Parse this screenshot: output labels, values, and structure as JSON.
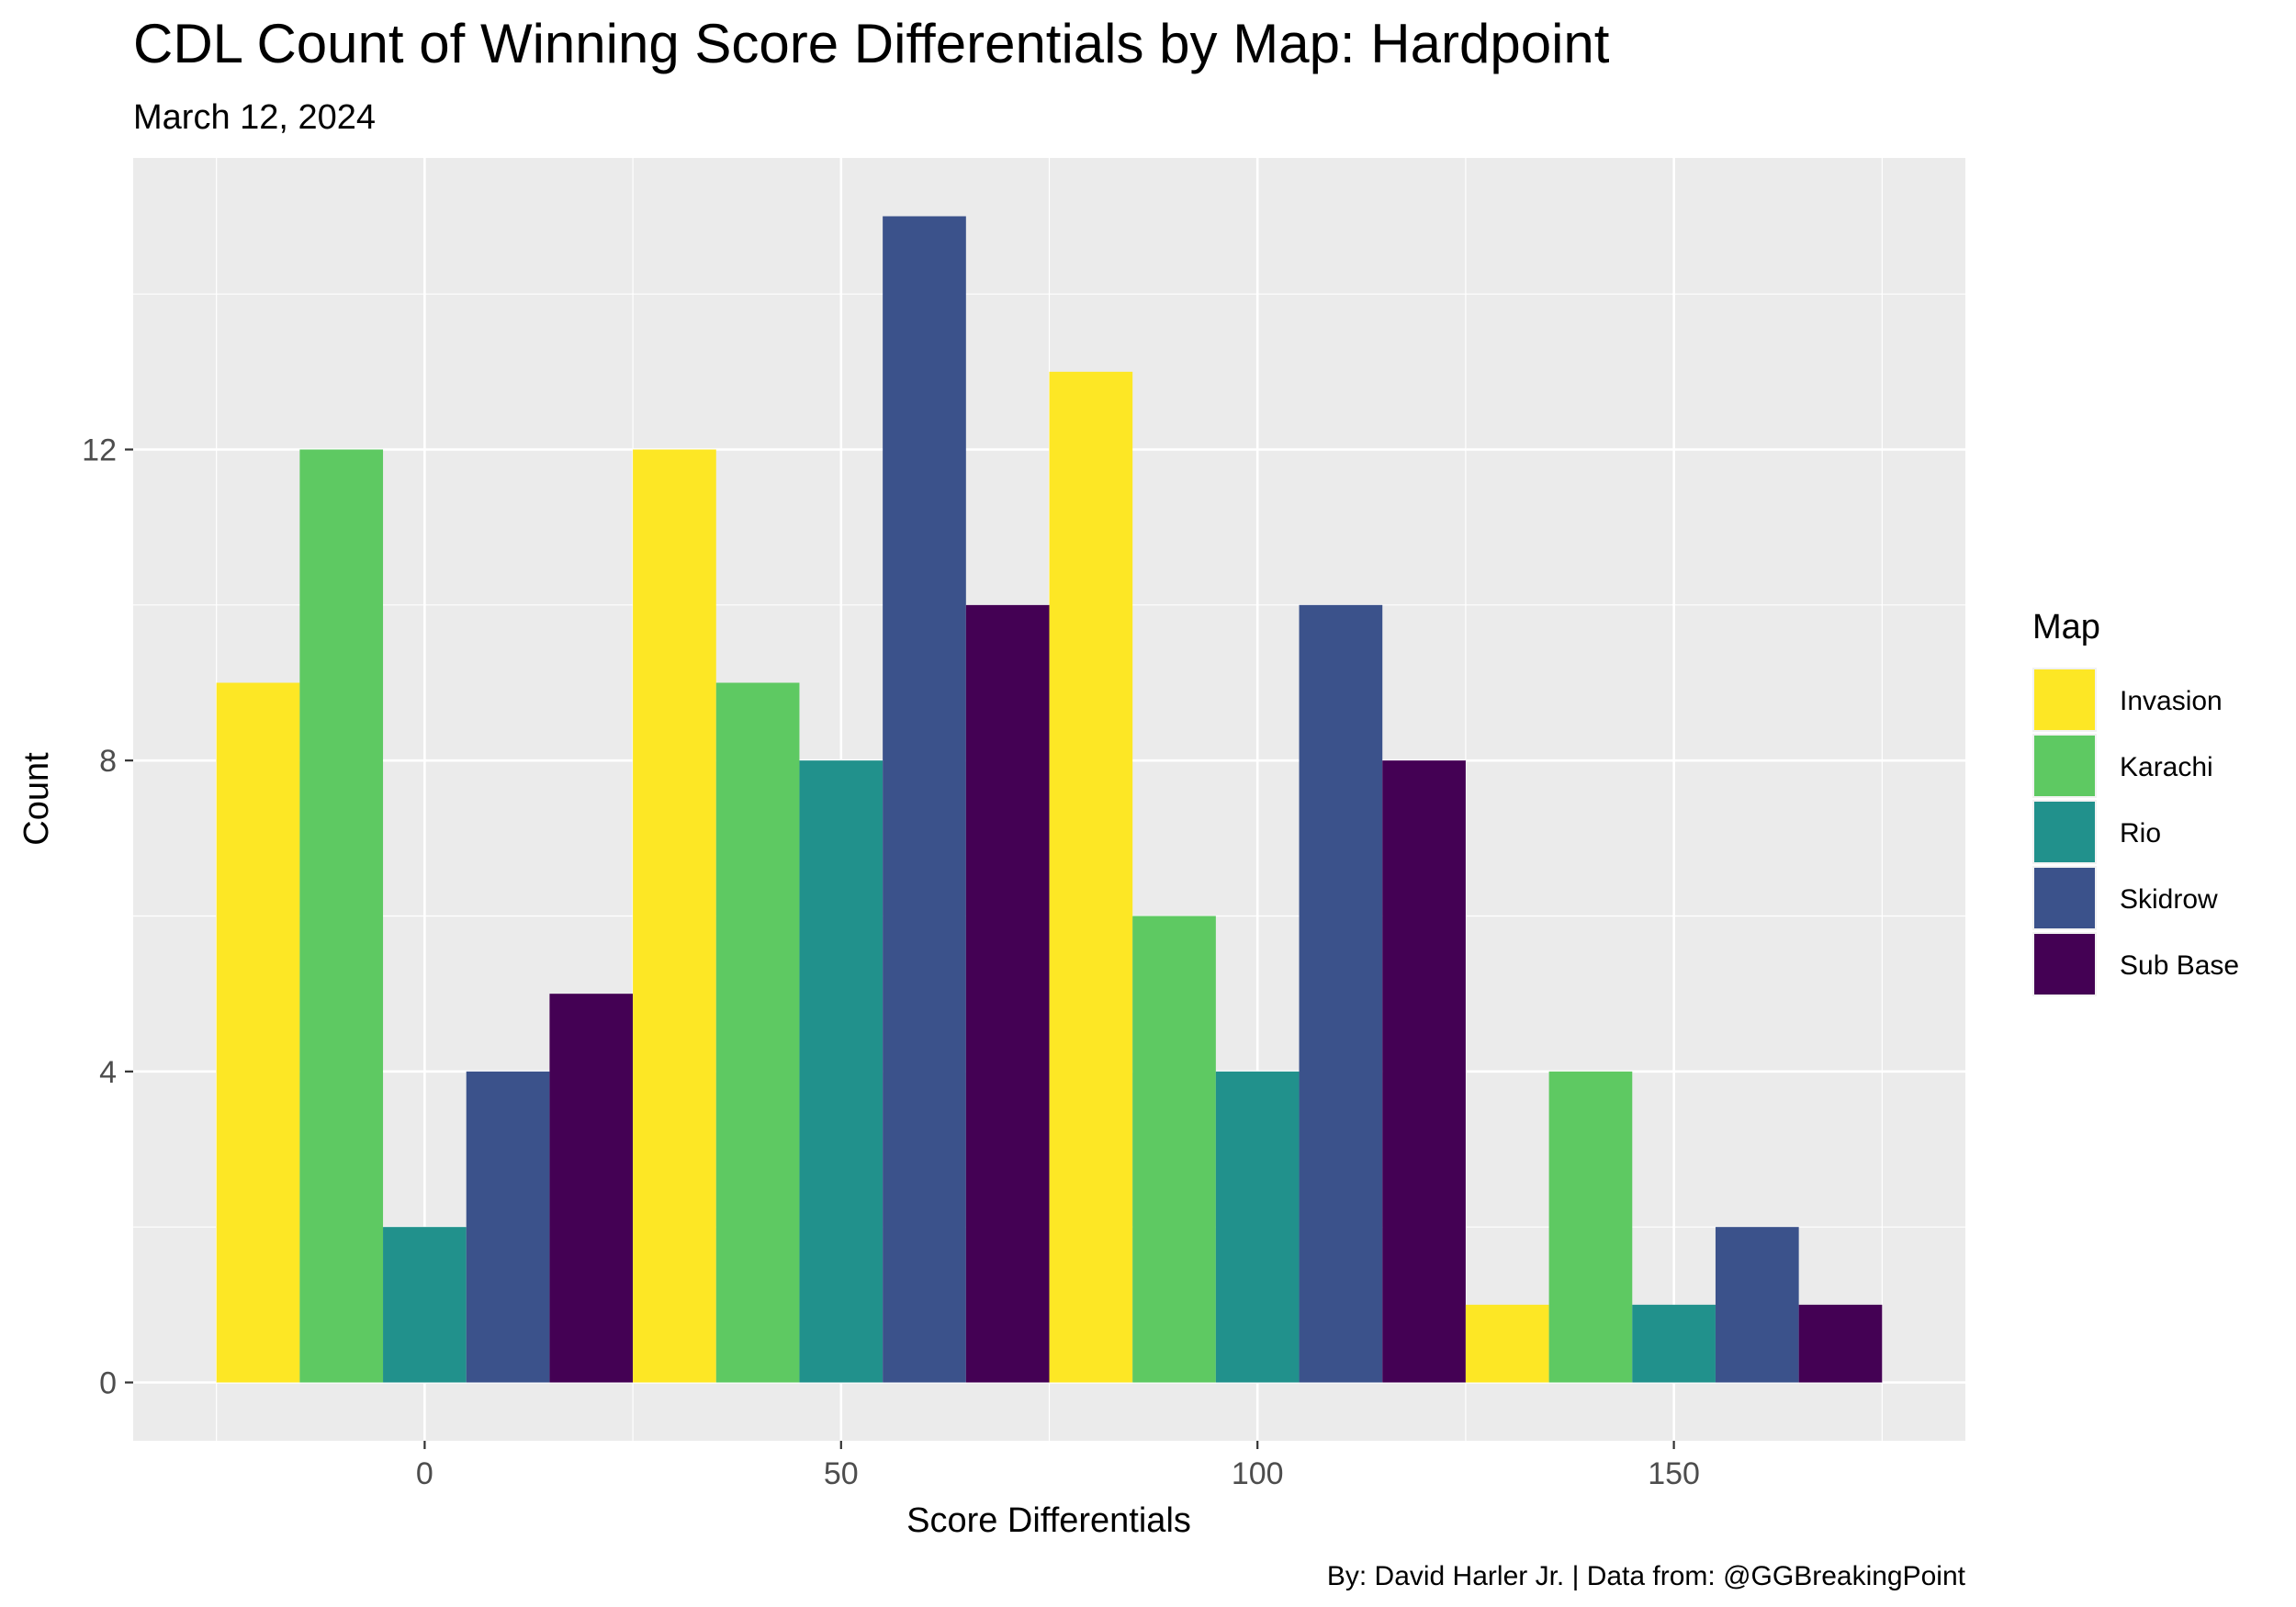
{
  "chart_data": {
    "type": "bar",
    "title": "CDL Count of Winning Score Differentials by Map: Hardpoint",
    "subtitle": "March 12, 2024",
    "caption": "By: David Harler Jr. | Data from: @GGBreakingPoint",
    "xlabel": "Score Differentials",
    "ylabel": "Count",
    "xlim": [
      -35,
      185
    ],
    "ylim": [
      -0.75,
      15.75
    ],
    "x_ticks": [
      0,
      50,
      100,
      150
    ],
    "y_ticks": [
      0,
      4,
      8,
      12
    ],
    "y_minor_ticks": [
      2,
      6,
      10,
      14
    ],
    "x_minor_ticks": [
      -25,
      25,
      75,
      125,
      175
    ],
    "grid": true,
    "bin_width": 50,
    "bins": [
      {
        "from": -25,
        "to": 25
      },
      {
        "from": 25,
        "to": 75
      },
      {
        "from": 75,
        "to": 125
      },
      {
        "from": 125,
        "to": 175
      }
    ],
    "legend": {
      "title": "Map",
      "position": "right"
    },
    "series": [
      {
        "name": "Invasion",
        "color": "#FDE725",
        "values": [
          9,
          12,
          13,
          1
        ]
      },
      {
        "name": "Karachi",
        "color": "#5EC962",
        "values": [
          12,
          9,
          6,
          4
        ]
      },
      {
        "name": "Rio",
        "color": "#21918C",
        "values": [
          2,
          8,
          4,
          1
        ]
      },
      {
        "name": "Skidrow",
        "color": "#3B528B",
        "values": [
          4,
          15,
          10,
          2
        ]
      },
      {
        "name": "Sub Base",
        "color": "#440154",
        "values": [
          5,
          10,
          8,
          1
        ]
      }
    ],
    "panel_background": "#EBEBEB",
    "grid_color": "#FFFFFF"
  }
}
